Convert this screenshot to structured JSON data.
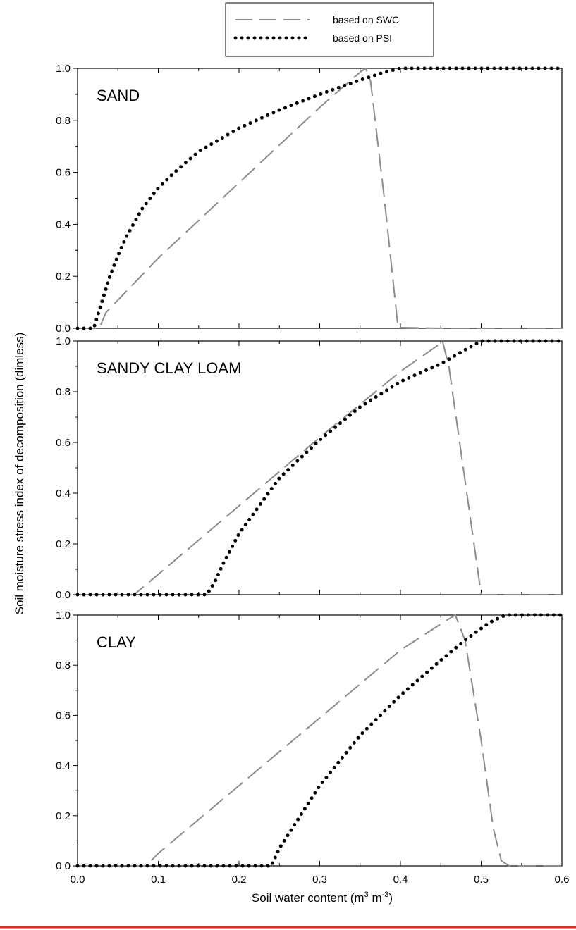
{
  "chart_data": {
    "type": "line",
    "xlabel": "Soil water content (m3 m-3)",
    "xlabel_parts": {
      "base": "Soil water content (m",
      "sup1": "3",
      "mid": " m",
      "sup2": "-3",
      "end": ")"
    },
    "ylabel": "Soil moisture stress index of decomposition (dimless)",
    "xlim": [
      0.0,
      0.6
    ],
    "ylim": [
      0.0,
      1.0
    ],
    "x_ticks": [
      "0.0",
      "0.1",
      "0.2",
      "0.3",
      "0.4",
      "0.5",
      "0.6"
    ],
    "y_ticks": [
      "0.0",
      "0.2",
      "0.4",
      "0.6",
      "0.8",
      "1.0"
    ],
    "grid": false,
    "legend": {
      "placement": "top-center",
      "entries": [
        {
          "label": "based on SWC",
          "style": "dashed",
          "color": "#8c8c8c"
        },
        {
          "label": "based on PSI",
          "style": "dotted",
          "color": "#000000"
        }
      ]
    },
    "panels": [
      {
        "label": "SAND",
        "series": [
          {
            "legend_key": 0,
            "style": "dashed",
            "color": "#8c8c8c",
            "points": [
              [
                0.0,
                0.0
              ],
              [
                0.027,
                0.0
              ],
              [
                0.035,
                0.06
              ],
              [
                0.1,
                0.27
              ],
              [
                0.2,
                0.56
              ],
              [
                0.3,
                0.85
              ],
              [
                0.35,
                0.985
              ],
              [
                0.357,
                1.0
              ],
              [
                0.363,
                0.95
              ],
              [
                0.38,
                0.5
              ],
              [
                0.397,
                0.003
              ],
              [
                0.45,
                0.0
              ],
              [
                0.6,
                0.0
              ]
            ]
          },
          {
            "legend_key": 1,
            "style": "dotted",
            "color": "#000000",
            "points": [
              [
                0.0,
                0.0
              ],
              [
                0.02,
                0.0
              ],
              [
                0.03,
                0.1
              ],
              [
                0.04,
                0.2
              ],
              [
                0.05,
                0.28
              ],
              [
                0.06,
                0.35
              ],
              [
                0.08,
                0.46
              ],
              [
                0.1,
                0.54
              ],
              [
                0.12,
                0.6
              ],
              [
                0.15,
                0.68
              ],
              [
                0.2,
                0.77
              ],
              [
                0.25,
                0.84
              ],
              [
                0.3,
                0.9
              ],
              [
                0.35,
                0.955
              ],
              [
                0.38,
                0.985
              ],
              [
                0.4,
                1.0
              ],
              [
                0.6,
                1.0
              ]
            ]
          }
        ]
      },
      {
        "label": "SANDY CLAY LOAM",
        "series": [
          {
            "legend_key": 0,
            "style": "dashed",
            "color": "#8c8c8c",
            "points": [
              [
                0.0,
                0.0
              ],
              [
                0.07,
                0.0
              ],
              [
                0.1,
                0.08
              ],
              [
                0.2,
                0.35
              ],
              [
                0.3,
                0.62
              ],
              [
                0.4,
                0.88
              ],
              [
                0.445,
                0.98
              ],
              [
                0.452,
                1.0
              ],
              [
                0.46,
                0.9
              ],
              [
                0.48,
                0.45
              ],
              [
                0.5,
                0.0
              ],
              [
                0.6,
                0.0
              ]
            ]
          },
          {
            "legend_key": 1,
            "style": "dotted",
            "color": "#000000",
            "points": [
              [
                0.0,
                0.0
              ],
              [
                0.16,
                0.0
              ],
              [
                0.17,
                0.05
              ],
              [
                0.18,
                0.12
              ],
              [
                0.2,
                0.24
              ],
              [
                0.25,
                0.46
              ],
              [
                0.3,
                0.61
              ],
              [
                0.35,
                0.74
              ],
              [
                0.4,
                0.84
              ],
              [
                0.45,
                0.91
              ],
              [
                0.48,
                0.965
              ],
              [
                0.5,
                1.0
              ],
              [
                0.6,
                1.0
              ]
            ]
          }
        ]
      },
      {
        "label": "CLAY",
        "series": [
          {
            "legend_key": 0,
            "style": "dashed",
            "color": "#8c8c8c",
            "points": [
              [
                0.0,
                0.0
              ],
              [
                0.085,
                0.0
              ],
              [
                0.1,
                0.05
              ],
              [
                0.2,
                0.32
              ],
              [
                0.3,
                0.59
              ],
              [
                0.4,
                0.86
              ],
              [
                0.455,
                0.975
              ],
              [
                0.468,
                1.0
              ],
              [
                0.48,
                0.9
              ],
              [
                0.5,
                0.5
              ],
              [
                0.515,
                0.15
              ],
              [
                0.525,
                0.02
              ],
              [
                0.535,
                0.0
              ],
              [
                0.6,
                0.0
              ]
            ]
          },
          {
            "legend_key": 1,
            "style": "dotted",
            "color": "#000000",
            "points": [
              [
                0.0,
                0.0
              ],
              [
                0.24,
                0.0
              ],
              [
                0.25,
                0.07
              ],
              [
                0.3,
                0.32
              ],
              [
                0.35,
                0.52
              ],
              [
                0.4,
                0.68
              ],
              [
                0.45,
                0.82
              ],
              [
                0.48,
                0.9
              ],
              [
                0.51,
                0.97
              ],
              [
                0.53,
                1.0
              ],
              [
                0.6,
                1.0
              ]
            ]
          }
        ]
      }
    ]
  }
}
